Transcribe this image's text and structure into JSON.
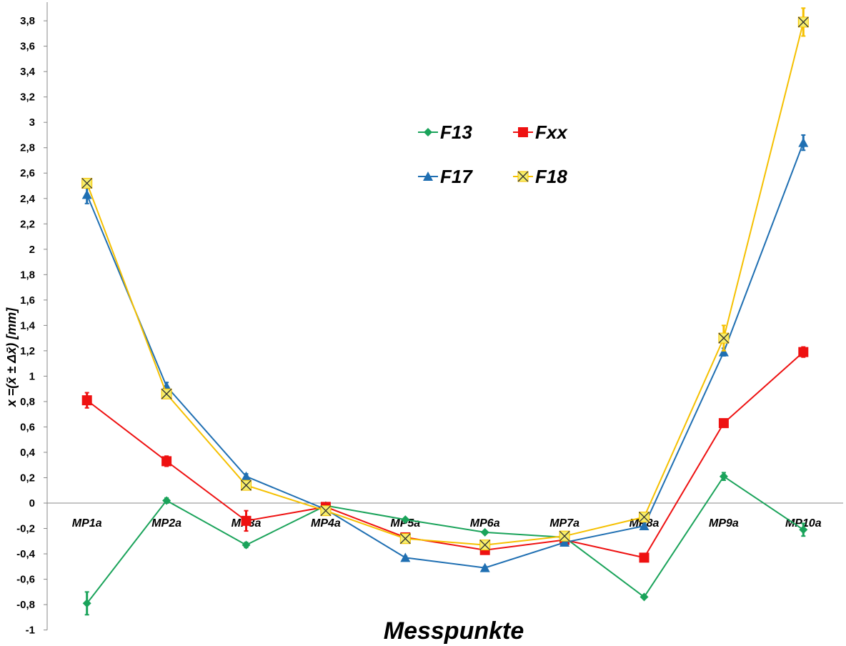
{
  "chart_data": {
    "type": "line",
    "title": "",
    "xlabel": "Messpunkte",
    "ylabel": "x =(x̄ ± Δx̄) [mm]",
    "categories": [
      "MP1a",
      "MP2a",
      "MP3a",
      "MP4a",
      "MP5a",
      "MP6a",
      "MP7a",
      "MP8a",
      "MP9a",
      "MP10a"
    ],
    "ylim": [
      -1,
      3.9
    ],
    "yticks": [
      -1,
      -0.8,
      -0.6,
      -0.4,
      -0.2,
      0,
      0.2,
      0.4,
      0.6,
      0.8,
      1,
      1.2,
      1.4,
      1.6,
      1.8,
      2,
      2.2,
      2.4,
      2.6,
      2.8,
      3,
      3.2,
      3.4,
      3.6,
      3.8
    ],
    "ytick_labels": [
      "-1",
      "-0,8",
      "-0,6",
      "-0,4",
      "-0,2",
      "0",
      "0,2",
      "0,4",
      "0,6",
      "0,8",
      "1",
      "1,2",
      "1,4",
      "1,6",
      "1,8",
      "2",
      "2,2",
      "2,4",
      "2,6",
      "2,8",
      "3",
      "3,2",
      "3,4",
      "3,6",
      "3,8"
    ],
    "grid": false,
    "legend_position": "top-center",
    "series": [
      {
        "name": "F13",
        "color": "#1aa35a",
        "marker": "diamond",
        "values": [
          -0.79,
          0.02,
          -0.33,
          -0.02,
          -0.13,
          -0.23,
          -0.27,
          -0.74,
          0.21,
          -0.21
        ],
        "errors": [
          0.09,
          0.02,
          0.02,
          0.01,
          0.01,
          0.01,
          0.01,
          0.01,
          0.03,
          0.05
        ]
      },
      {
        "name": "Fxx",
        "color": "#ee1111",
        "marker": "square",
        "values": [
          0.81,
          0.33,
          -0.14,
          -0.03,
          -0.27,
          -0.37,
          -0.29,
          -0.43,
          0.63,
          1.19
        ],
        "errors": [
          0.06,
          0.04,
          0.08,
          0.01,
          0.01,
          0.01,
          0.01,
          0.01,
          0.02,
          0.04
        ]
      },
      {
        "name": "F17",
        "color": "#1f6fb2",
        "marker": "triangle",
        "values": [
          2.43,
          0.92,
          0.21,
          -0.05,
          -0.43,
          -0.51,
          -0.31,
          -0.18,
          1.19,
          2.84
        ],
        "errors": [
          0.07,
          0.03,
          0.02,
          0.01,
          0.01,
          0.01,
          0.01,
          0.01,
          0.03,
          0.06
        ]
      },
      {
        "name": "F18",
        "color": "#f5c000",
        "marker": "x",
        "values": [
          2.52,
          0.86,
          0.14,
          -0.06,
          -0.28,
          -0.33,
          -0.26,
          -0.11,
          1.3,
          3.79
        ],
        "errors": [
          0.03,
          0.03,
          0.02,
          0.01,
          0.01,
          0.01,
          0.01,
          0.01,
          0.1,
          0.11
        ]
      }
    ]
  }
}
